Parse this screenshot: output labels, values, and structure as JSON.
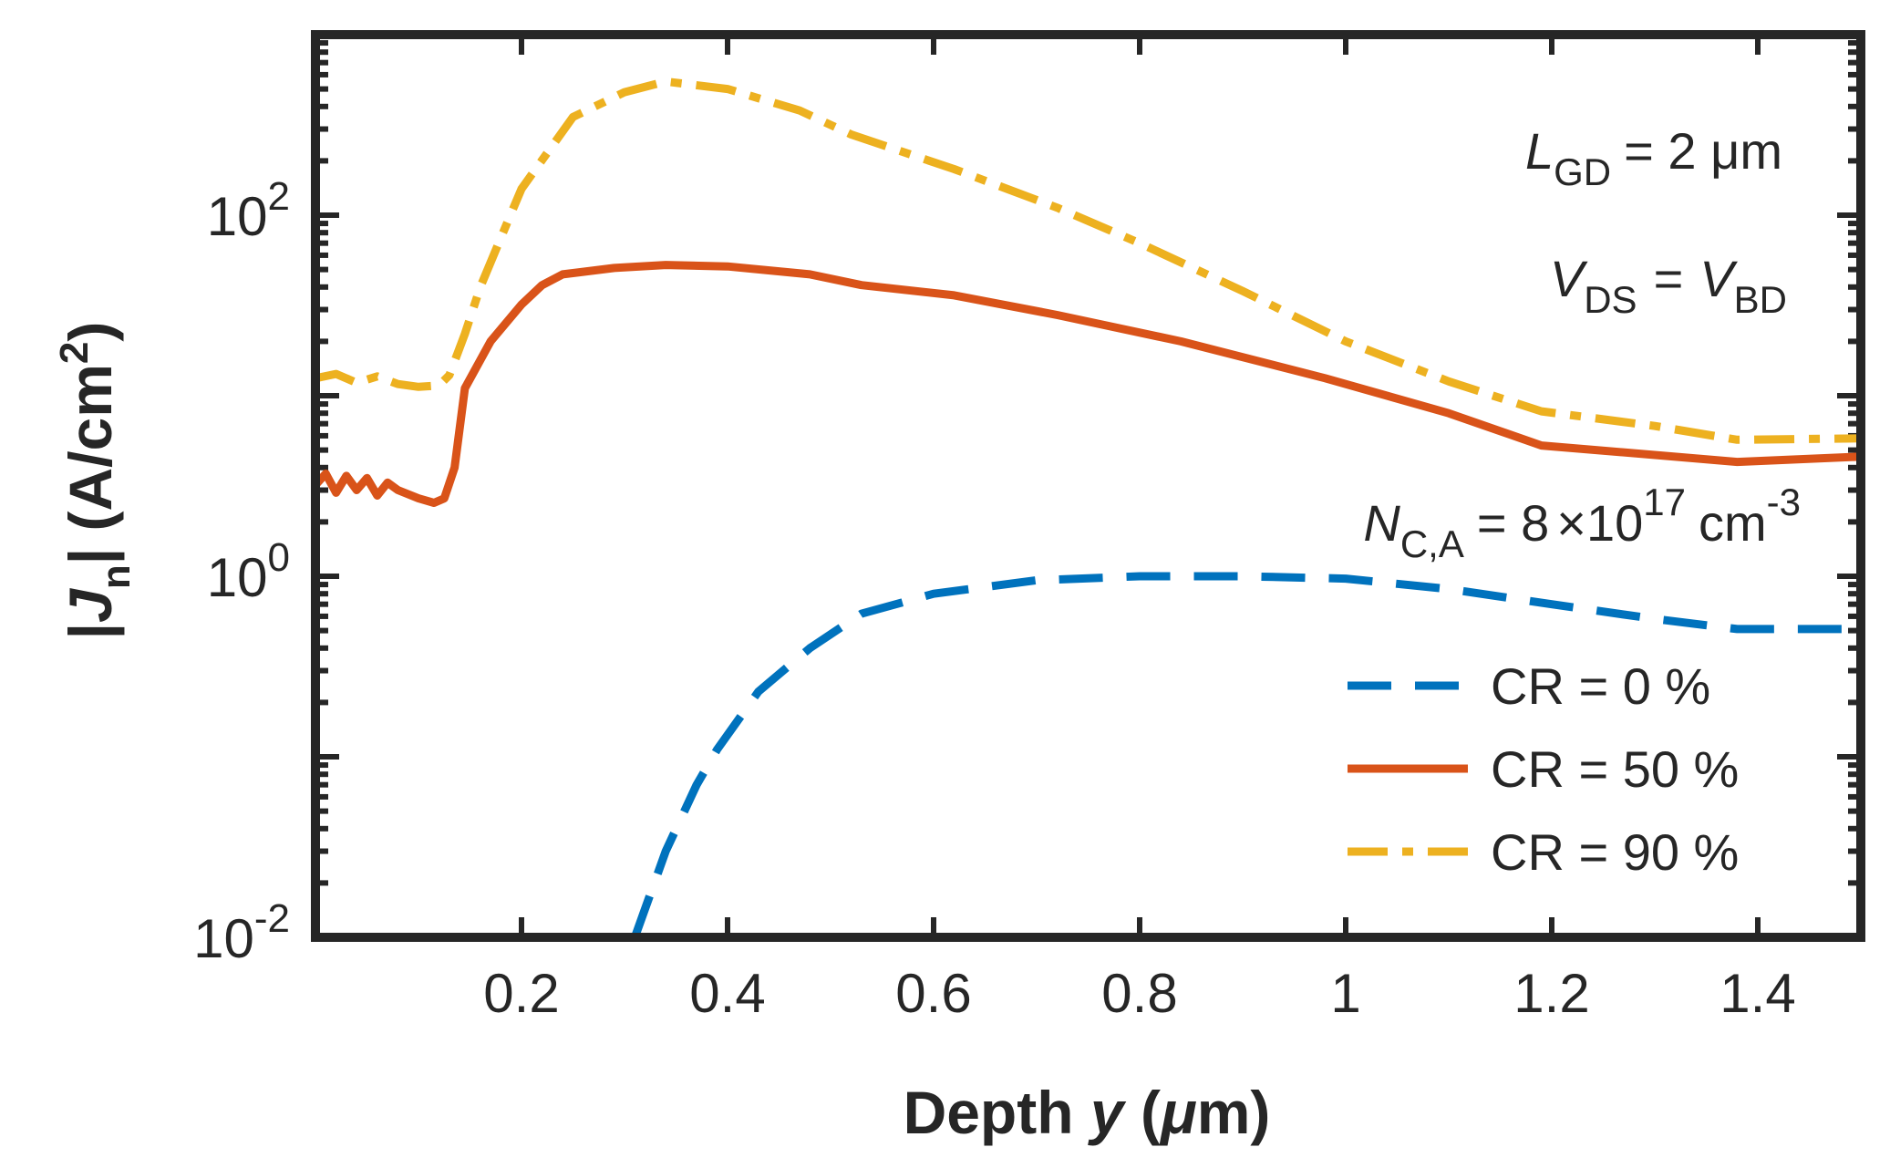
{
  "chart_data": {
    "type": "line",
    "xlabel": "Depth y (μm)",
    "ylabel": "|Jn| (A/cm2)",
    "y_scale": "log",
    "xlim": [
      0.0,
      1.5
    ],
    "ylim": [
      0.01,
      1000
    ],
    "grid": false,
    "x_ticks": [
      0.2,
      0.4,
      0.6,
      0.8,
      1.0,
      1.2,
      1.4
    ],
    "x_tick_labels": [
      "0.2",
      "0.4",
      "0.6",
      "0.8",
      "1",
      "1.2",
      "1.4"
    ],
    "y_ticks": [
      0.01,
      1,
      100
    ],
    "y_tick_labels": [
      {
        "base": "10",
        "exp": "-2"
      },
      {
        "base": "10",
        "exp": "0"
      },
      {
        "base": "10",
        "exp": "2"
      }
    ],
    "annotations": {
      "lgd": {
        "sym": "L",
        "sub": "GD",
        "rest": "= 2 μm"
      },
      "vds": {
        "sym1": "V",
        "sub1": "DS",
        "eq": "=",
        "sym2": "V",
        "sub2": "BD"
      },
      "nca": {
        "sym": "N",
        "sub": "C,A",
        "eq": "= 8",
        "times": "×",
        "base": "10",
        "exp": "17",
        "unit": "cm",
        "unit_exp": "-3"
      }
    },
    "legend_position": "bottom-right",
    "series": [
      {
        "name": "CR = 0 %",
        "color": "#0072BD",
        "style": "dashed",
        "x": [
          0.31,
          0.34,
          0.37,
          0.39,
          0.43,
          0.48,
          0.53,
          0.6,
          0.7,
          0.8,
          0.9,
          1.0,
          1.1,
          1.2,
          1.3,
          1.38,
          1.45,
          1.5
        ],
        "y": [
          0.01,
          0.03,
          0.07,
          0.11,
          0.23,
          0.4,
          0.62,
          0.8,
          0.95,
          1.0,
          1.0,
          0.97,
          0.85,
          0.7,
          0.58,
          0.51,
          0.51,
          0.51
        ]
      },
      {
        "name": "CR = 50 %",
        "color": "#D95319",
        "style": "solid",
        "x": [
          0.0,
          0.01,
          0.02,
          0.03,
          0.04,
          0.05,
          0.06,
          0.07,
          0.08,
          0.1,
          0.115,
          0.125,
          0.135,
          0.145,
          0.17,
          0.2,
          0.22,
          0.24,
          0.29,
          0.34,
          0.4,
          0.48,
          0.53,
          0.62,
          0.72,
          0.84,
          0.98,
          1.1,
          1.19,
          1.38,
          1.5
        ],
        "y": [
          3.2,
          3.7,
          2.9,
          3.6,
          3.0,
          3.5,
          2.8,
          3.3,
          3.0,
          2.7,
          2.55,
          2.7,
          4.0,
          11.0,
          20.0,
          32.0,
          41.0,
          47.0,
          51.0,
          53.0,
          52.0,
          47.0,
          41.0,
          36.0,
          28.0,
          20.0,
          12.5,
          8.0,
          5.3,
          4.3,
          4.6
        ]
      },
      {
        "name": "CR = 90 %",
        "color": "#EDB120",
        "style": "dash-dot",
        "x": [
          0.0,
          0.02,
          0.04,
          0.06,
          0.08,
          0.1,
          0.12,
          0.13,
          0.145,
          0.16,
          0.18,
          0.2,
          0.25,
          0.3,
          0.34,
          0.4,
          0.47,
          0.52,
          0.62,
          0.72,
          0.8,
          0.9,
          1.0,
          1.1,
          1.19,
          1.3,
          1.38,
          1.5
        ],
        "y": [
          12.5,
          13.2,
          11.8,
          12.8,
          11.6,
          11.2,
          11.4,
          13.0,
          22.0,
          40.0,
          75.0,
          140.0,
          350.0,
          480.0,
          550.0,
          500.0,
          380.0,
          280.0,
          180.0,
          110.0,
          70.0,
          38.0,
          20.0,
          12.0,
          8.2,
          6.8,
          5.7,
          5.8
        ]
      }
    ]
  }
}
